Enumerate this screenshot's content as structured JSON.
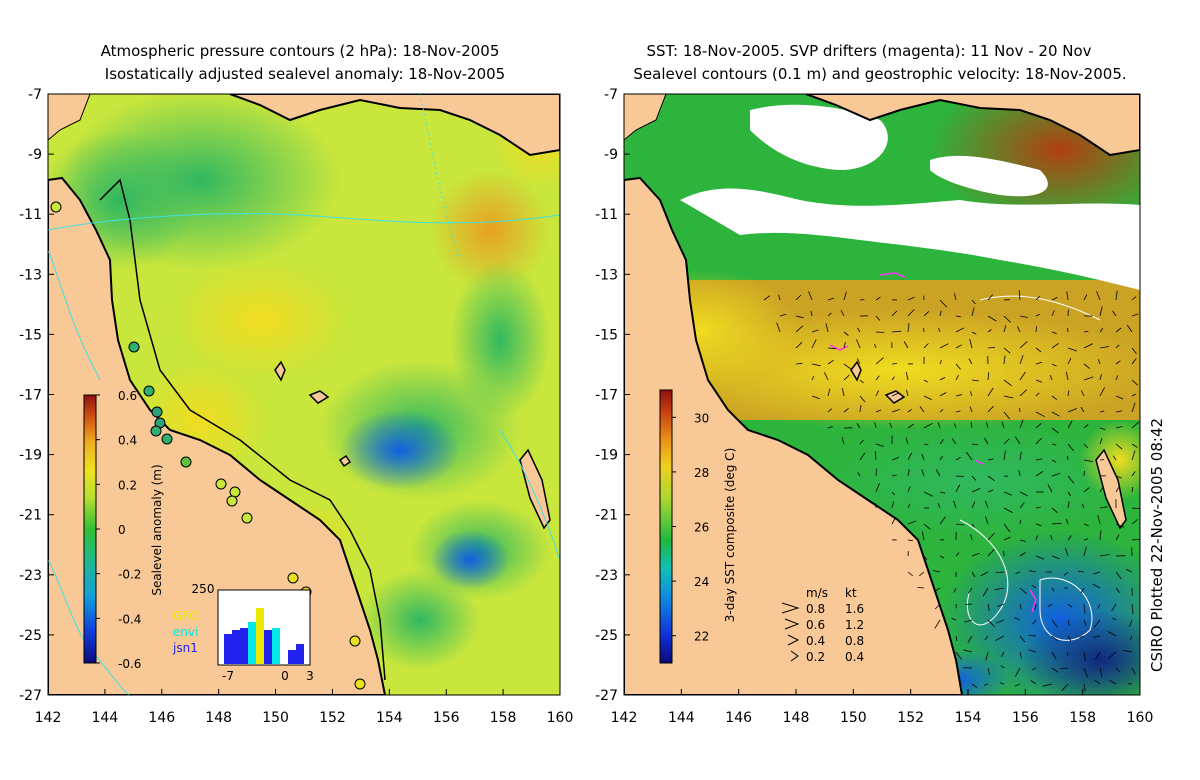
{
  "left_panel": {
    "title_line1": "Atmospheric pressure contours (2 hPa): 18-Nov-2005",
    "title_line2": "Isostatically adjusted sealevel anomaly: 18-Nov-2005",
    "colorbar": {
      "label": "Sealevel anomaly (m)",
      "ticks": [
        "0.6",
        "0.4",
        "0.2",
        "0",
        "-0.2",
        "-0.4",
        "-0.6"
      ],
      "range": [
        -0.6,
        0.6
      ]
    },
    "histogram": {
      "top_label": "250",
      "legend": [
        "GFO",
        "envi",
        "jsn1"
      ],
      "legend_colors": [
        "#e8e800",
        "#00e8e8",
        "#2222ee"
      ],
      "x_ticks": [
        "-7",
        "0",
        "3"
      ]
    }
  },
  "right_panel": {
    "title_line1": "SST: 18-Nov-2005. SVP drifters (magenta): 11 Nov - 20 Nov",
    "title_line2": "Sealevel contours (0.1 m) and geostrophic velocity: 18-Nov-2005.",
    "colorbar": {
      "label": "3-day SST composite (deg C)",
      "ticks": [
        "30",
        "28",
        "26",
        "24",
        "22"
      ],
      "range": [
        21,
        31
      ]
    },
    "speed_legend": {
      "header_ms": "m/s",
      "header_kt": "kt",
      "rows": [
        {
          "ms": "0.8",
          "kt": "1.6"
        },
        {
          "ms": "0.6",
          "kt": "1.2"
        },
        {
          "ms": "0.4",
          "kt": "0.8"
        },
        {
          "ms": "0.2",
          "kt": "0.4"
        }
      ]
    },
    "credit": "CSIRO Plotted 22-Nov-2005 08:42"
  },
  "axes": {
    "lat_ticks": [
      "-7",
      "-9",
      "-11",
      "-13",
      "-15",
      "-17",
      "-19",
      "-21",
      "-23",
      "-25",
      "-27"
    ],
    "lon_ticks": [
      "142",
      "144",
      "146",
      "148",
      "150",
      "152",
      "154",
      "156",
      "158",
      "160"
    ]
  },
  "colors": {
    "land": "#f8c896",
    "ocean_base_left": "#c8e63c",
    "ocean_base_right": "#2db43c",
    "coast": "#000000",
    "contour_cyan": "#40e0e0"
  }
}
